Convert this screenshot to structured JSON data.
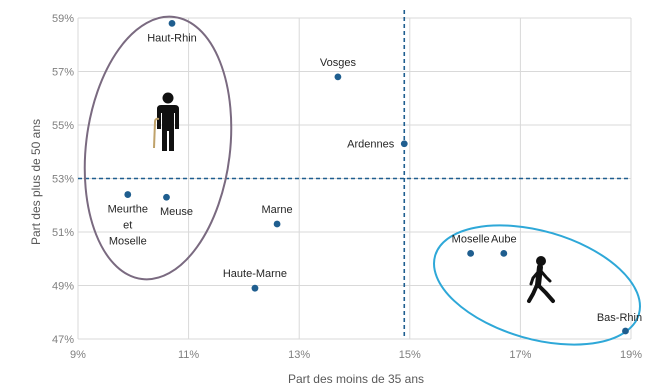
{
  "chart_data": {
    "type": "scatter",
    "title": "",
    "xlabel": "Part des moins de 35 ans",
    "ylabel": "Part des plus de 50 ans",
    "xlim": [
      0.09,
      0.19
    ],
    "ylim": [
      0.47,
      0.59
    ],
    "x_ticks": [
      {
        "value": 0.09,
        "label": "9%"
      },
      {
        "value": 0.11,
        "label": "11%"
      },
      {
        "value": 0.13,
        "label": "13%"
      },
      {
        "value": 0.15,
        "label": "15%"
      },
      {
        "value": 0.17,
        "label": "17%"
      },
      {
        "value": 0.19,
        "label": "19%"
      }
    ],
    "y_ticks": [
      {
        "value": 0.47,
        "label": "47%"
      },
      {
        "value": 0.49,
        "label": "49%"
      },
      {
        "value": 0.51,
        "label": "51%"
      },
      {
        "value": 0.53,
        "label": "53%"
      },
      {
        "value": 0.55,
        "label": "55%"
      },
      {
        "value": 0.57,
        "label": "57%"
      },
      {
        "value": 0.59,
        "label": "59%"
      }
    ],
    "grid": true,
    "reference_lines": {
      "x": 0.149,
      "y": 0.53
    },
    "points": [
      {
        "label": [
          "Haut-Rhin"
        ],
        "x": 0.107,
        "y": 0.588,
        "label_pos": "below"
      },
      {
        "label": [
          "Vosges"
        ],
        "x": 0.137,
        "y": 0.568,
        "label_pos": "above"
      },
      {
        "label": [
          "Ardennes"
        ],
        "x": 0.149,
        "y": 0.543,
        "label_pos": "left"
      },
      {
        "label": [
          "Meurthe",
          "et",
          "Moselle"
        ],
        "x": 0.099,
        "y": 0.524,
        "label_pos": "below"
      },
      {
        "label": [
          "Meuse"
        ],
        "x": 0.106,
        "y": 0.523,
        "label_pos": "below-right"
      },
      {
        "label": [
          "Marne"
        ],
        "x": 0.126,
        "y": 0.513,
        "label_pos": "above"
      },
      {
        "label": [
          "Haute-Marne"
        ],
        "x": 0.122,
        "y": 0.489,
        "label_pos": "above"
      },
      {
        "label": [
          "Moselle"
        ],
        "x": 0.161,
        "y": 0.502,
        "label_pos": "above"
      },
      {
        "label": [
          "Aube"
        ],
        "x": 0.167,
        "y": 0.502,
        "label_pos": "above"
      },
      {
        "label": [
          "Bas-Rhin"
        ],
        "x": 0.189,
        "y": 0.473,
        "label_pos": "above-left"
      }
    ],
    "annotations": [
      {
        "shape": "ellipse",
        "color": "#7a6a80",
        "icon": "elderly-person-with-cane-icon"
      },
      {
        "shape": "ellipse",
        "color": "#2ea8d8",
        "icon": "walking-person-icon"
      }
    ],
    "colors": {
      "point": "#1f5e8f",
      "reference_line": "#1f5e8f",
      "grid": "#d9d9d9",
      "ellipse_old": "#7a6a80",
      "ellipse_young": "#2ea8d8"
    }
  }
}
